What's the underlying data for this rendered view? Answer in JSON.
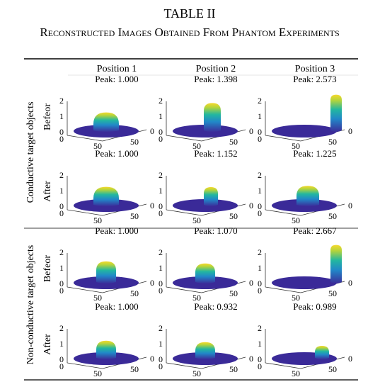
{
  "title": "TABLE II",
  "subtitle": "Reconstructed Images Obtained From Phantom Experiments",
  "columns": [
    "Position 1",
    "Position 2",
    "Position 3"
  ],
  "groups": [
    {
      "label": "Conductive target objects",
      "rows": [
        {
          "label": "Befeor",
          "peaks": [
            "Peak: 1.000",
            "Peak: 1.398",
            "Peak: 2.573"
          ]
        },
        {
          "label": "After",
          "peaks": [
            "Peak: 1.000",
            "Peak: 1.152",
            "Peak: 1.225"
          ]
        }
      ]
    },
    {
      "label": "Non-conductive target objects",
      "rows": [
        {
          "label": "Befeor",
          "peaks": [
            "Peak: 1.000",
            "Peak: 1.070",
            "Peak: 2.667"
          ]
        },
        {
          "label": "After",
          "peaks": [
            "Peak: 1.000",
            "Peak: 0.932",
            "Peak: 0.989"
          ]
        }
      ]
    }
  ],
  "plot_ticks": {
    "z": [
      "2",
      "1",
      "0"
    ],
    "x": [
      "0",
      "50"
    ],
    "y": [
      "50",
      "0"
    ]
  }
}
